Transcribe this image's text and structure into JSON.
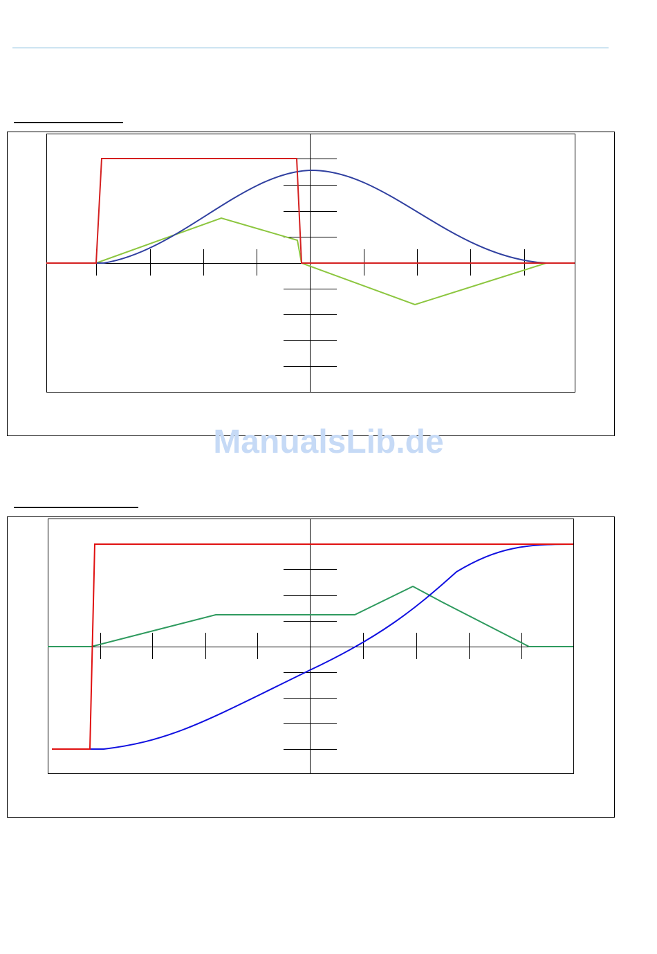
{
  "watermark": "ManualsLib.de"
}
